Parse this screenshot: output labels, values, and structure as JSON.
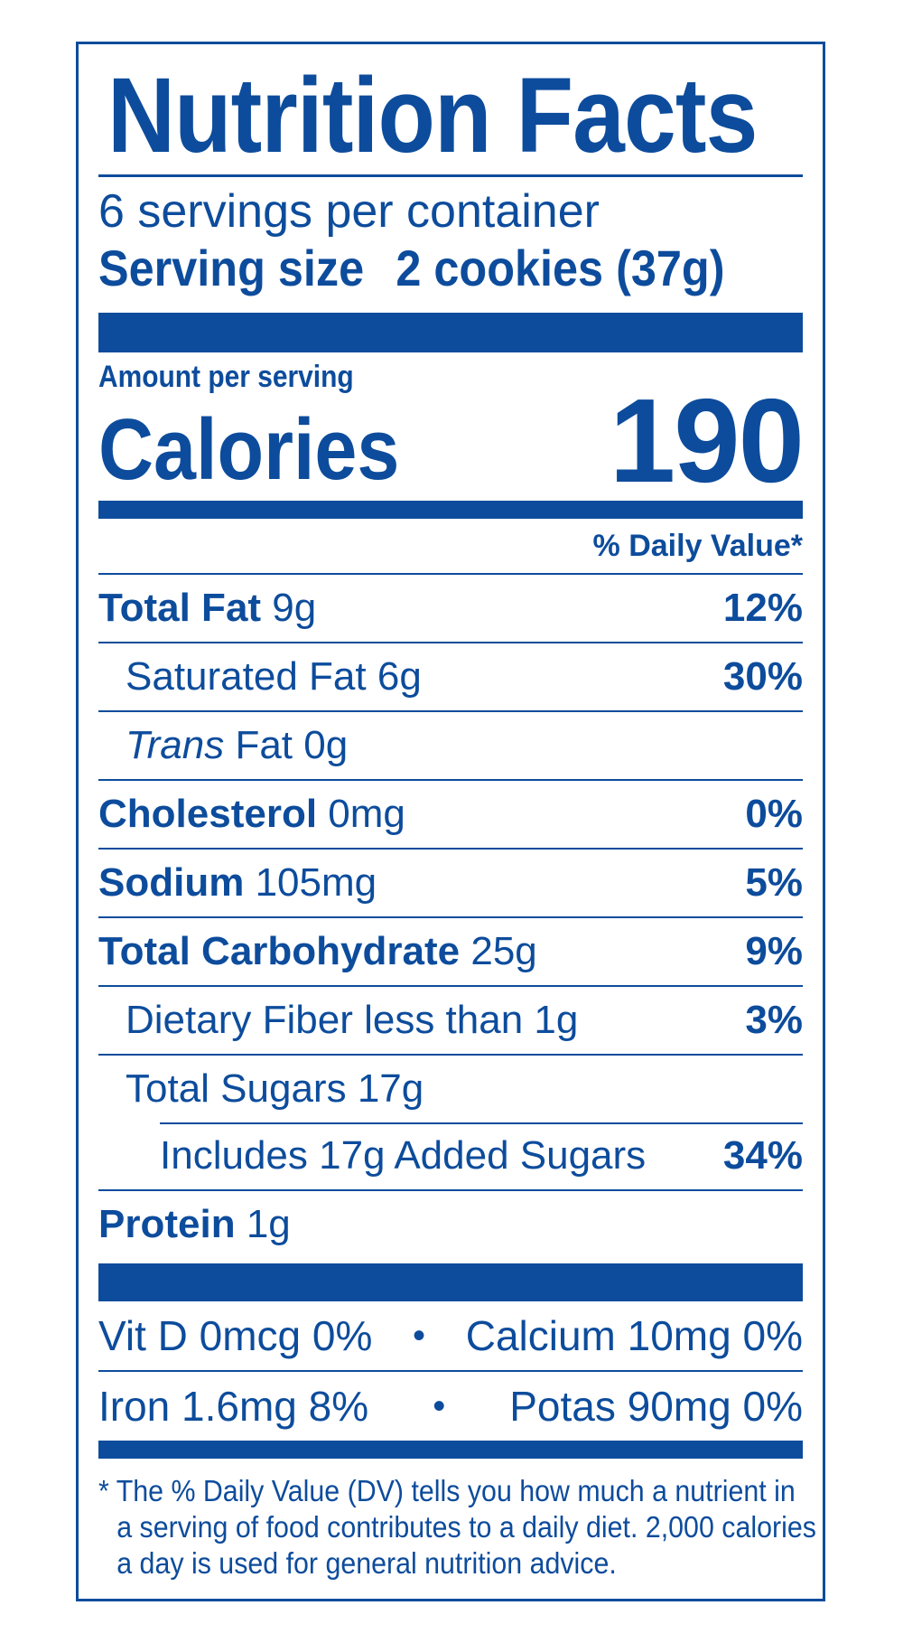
{
  "label": {
    "title": "Nutrition Facts",
    "servings_per_container": "6 servings per container",
    "serving_size_label": "Serving size",
    "serving_size_value": "2 cookies (37g)",
    "amount_per_serving": "Amount per serving",
    "calories_label": "Calories",
    "calories_value": "190",
    "daily_value_header": "% Daily Value*",
    "nutrients": [
      {
        "name": "Total Fat",
        "amount": "9g",
        "dv": "12%"
      },
      {
        "name": "Saturated Fat",
        "amount": "6g",
        "dv": "30%"
      },
      {
        "name": "Trans",
        "name_suffix": "Fat",
        "amount": "0g",
        "dv": ""
      },
      {
        "name": "Cholesterol",
        "amount": "0mg",
        "dv": "0%"
      },
      {
        "name": "Sodium",
        "amount": "105mg",
        "dv": "5%"
      },
      {
        "name": "Total Carbohydrate",
        "amount": "25g",
        "dv": "9%"
      },
      {
        "name": "Dietary Fiber",
        "amount": "less than 1g",
        "dv": "3%"
      },
      {
        "name": "Total Sugars",
        "amount": "17g",
        "dv": ""
      },
      {
        "name": "Includes 17g Added Sugars",
        "amount": "",
        "dv": "34%"
      },
      {
        "name": "Protein",
        "amount": "1g",
        "dv": ""
      }
    ],
    "vitamins": [
      {
        "left": "Vit D 0mcg 0%",
        "bullet": "•",
        "right": "Calcium 10mg 0%"
      },
      {
        "left": "Iron 1.6mg 8%",
        "bullet": "•",
        "right": "Potas 90mg 0%"
      }
    ],
    "footnote": "* The % Daily Value (DV) tells you how much a nutrient in a serving of food contributes to a daily diet. 2,000 calories a day is used for general nutrition advice.",
    "colors": {
      "ink": "#0d4c9c",
      "background": "#ffffff"
    }
  }
}
